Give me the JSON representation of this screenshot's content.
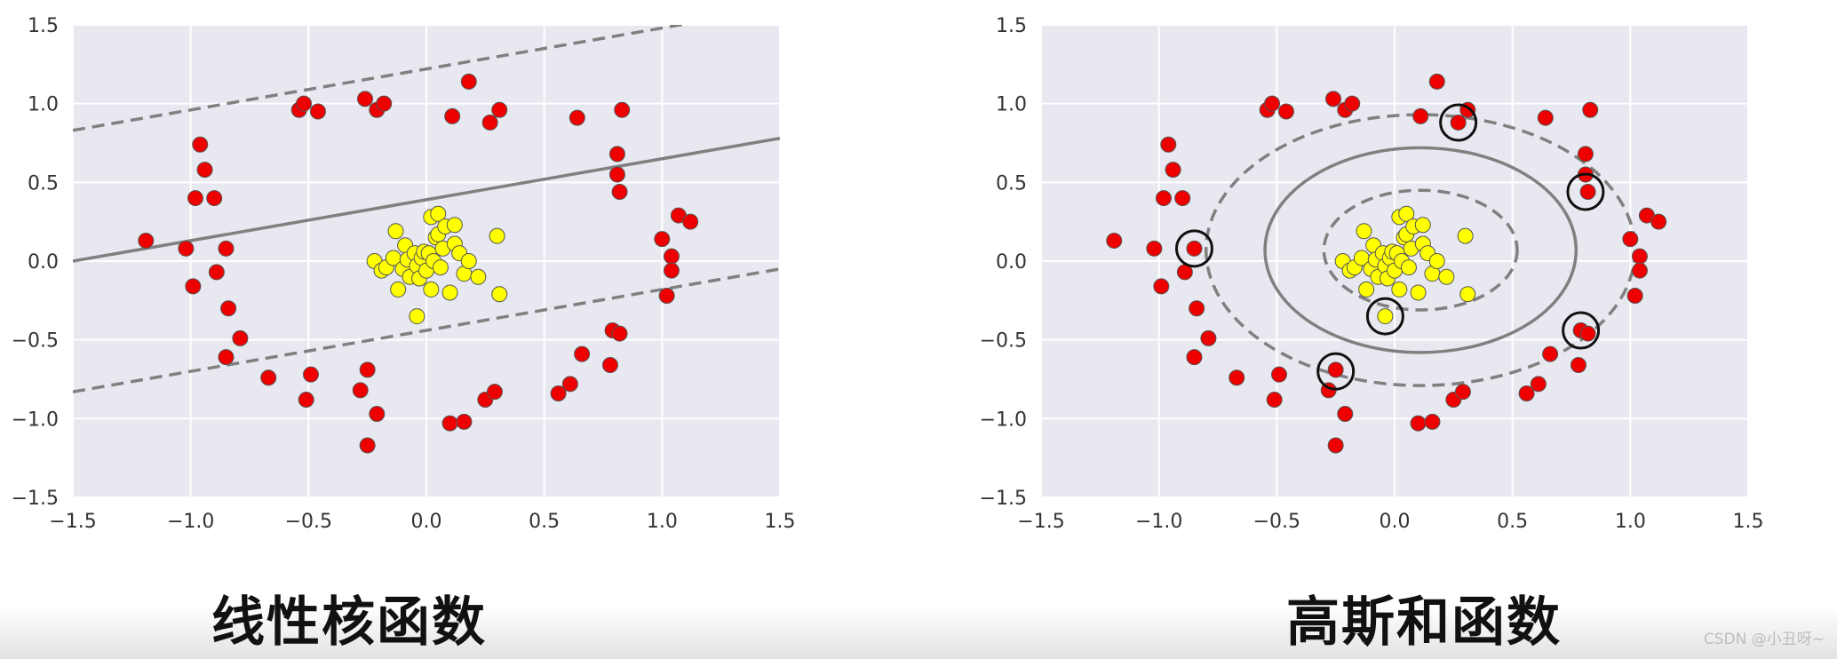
{
  "captions": {
    "left": "线性核函数",
    "right": "高斯和函数"
  },
  "watermark": "CSDN @小丑呀~",
  "colors": {
    "panel_bg": "#e8e8f0",
    "grid": "#ffffff",
    "red_points": "#ee0000",
    "yellow_points": "#ffff00",
    "boundary": "#808080",
    "support_circle": "#111111"
  },
  "chart_data": [
    {
      "type": "scatter",
      "title": "",
      "xlabel": "",
      "ylabel": "",
      "xlim": [
        -1.5,
        1.5
      ],
      "ylim": [
        -1.5,
        1.5
      ],
      "xticks": [
        "−1.5",
        "−1.0",
        "−0.5",
        "0.0",
        "0.5",
        "1.0",
        "1.5"
      ],
      "yticks": [
        "−1.5",
        "−1.0",
        "−0.5",
        "0.0",
        "0.5",
        "1.0",
        "1.5"
      ],
      "grid": true,
      "kernel": "linear",
      "decision_line": {
        "slope": 0.26,
        "intercept": 0.39,
        "margin_offset": 0.83
      },
      "series": [
        {
          "color": "red",
          "points": [
            [
              -1.19,
              0.13
            ],
            [
              -1.02,
              0.08
            ],
            [
              -0.99,
              -0.16
            ],
            [
              -0.98,
              0.4
            ],
            [
              -0.96,
              0.74
            ],
            [
              -0.94,
              0.58
            ],
            [
              -0.9,
              0.4
            ],
            [
              -0.89,
              -0.07
            ],
            [
              -0.85,
              0.08
            ],
            [
              -0.84,
              -0.3
            ],
            [
              -0.85,
              -0.61
            ],
            [
              -0.79,
              -0.49
            ],
            [
              -0.67,
              -0.74
            ],
            [
              -0.54,
              0.96
            ],
            [
              -0.52,
              1.0
            ],
            [
              -0.51,
              -0.88
            ],
            [
              -0.49,
              -0.72
            ],
            [
              -0.46,
              0.95
            ],
            [
              -0.28,
              -0.82
            ],
            [
              -0.26,
              1.03
            ],
            [
              -0.25,
              -0.69
            ],
            [
              -0.25,
              -1.17
            ],
            [
              -0.21,
              0.96
            ],
            [
              -0.21,
              -0.97
            ],
            [
              -0.18,
              1.0
            ],
            [
              0.1,
              -1.03
            ],
            [
              0.11,
              0.92
            ],
            [
              0.16,
              -1.02
            ],
            [
              0.18,
              1.14
            ],
            [
              0.25,
              -0.88
            ],
            [
              0.27,
              0.88
            ],
            [
              0.29,
              -0.83
            ],
            [
              0.31,
              0.96
            ],
            [
              0.56,
              -0.84
            ],
            [
              0.61,
              -0.78
            ],
            [
              0.64,
              0.91
            ],
            [
              0.66,
              -0.59
            ],
            [
              0.78,
              -0.66
            ],
            [
              0.79,
              -0.44
            ],
            [
              0.81,
              0.68
            ],
            [
              0.81,
              0.55
            ],
            [
              0.82,
              0.44
            ],
            [
              0.82,
              -0.46
            ],
            [
              0.83,
              0.96
            ],
            [
              1.0,
              0.14
            ],
            [
              1.02,
              -0.22
            ],
            [
              1.04,
              0.03
            ],
            [
              1.04,
              -0.06
            ],
            [
              1.07,
              0.29
            ],
            [
              1.12,
              0.25
            ]
          ]
        },
        {
          "color": "yellow",
          "points": [
            [
              -0.22,
              0.0
            ],
            [
              -0.19,
              -0.06
            ],
            [
              -0.17,
              -0.04
            ],
            [
              -0.14,
              0.02
            ],
            [
              -0.13,
              0.19
            ],
            [
              -0.12,
              -0.18
            ],
            [
              -0.1,
              -0.05
            ],
            [
              -0.09,
              0.1
            ],
            [
              -0.08,
              0.01
            ],
            [
              -0.07,
              -0.1
            ],
            [
              -0.05,
              0.05
            ],
            [
              -0.04,
              -0.03
            ],
            [
              -0.04,
              -0.35
            ],
            [
              -0.03,
              -0.11
            ],
            [
              -0.02,
              0.02
            ],
            [
              -0.01,
              0.06
            ],
            [
              0.0,
              -0.06
            ],
            [
              0.01,
              0.05
            ],
            [
              0.02,
              0.28
            ],
            [
              0.02,
              -0.18
            ],
            [
              0.03,
              0.0
            ],
            [
              0.04,
              0.15
            ],
            [
              0.05,
              0.3
            ],
            [
              0.05,
              0.17
            ],
            [
              0.06,
              -0.04
            ],
            [
              0.07,
              0.08
            ],
            [
              0.08,
              0.22
            ],
            [
              0.1,
              -0.2
            ],
            [
              0.12,
              0.23
            ],
            [
              0.12,
              0.11
            ],
            [
              0.14,
              0.05
            ],
            [
              0.16,
              -0.08
            ],
            [
              0.18,
              0.0
            ],
            [
              0.22,
              -0.1
            ],
            [
              0.3,
              0.16
            ],
            [
              0.31,
              -0.21
            ]
          ]
        }
      ]
    },
    {
      "type": "scatter",
      "title": "",
      "xlabel": "",
      "ylabel": "",
      "xlim": [
        -1.5,
        1.5
      ],
      "ylim": [
        -1.5,
        1.5
      ],
      "xticks": [
        "−1.5",
        "−1.0",
        "−0.5",
        "0.0",
        "0.5",
        "1.0",
        "1.5"
      ],
      "yticks": [
        "−1.5",
        "−1.0",
        "−0.5",
        "0.0",
        "0.5",
        "1.0",
        "1.5"
      ],
      "grid": true,
      "kernel": "rbf",
      "decision_ellipses": [
        {
          "role": "boundary",
          "cx": 0.11,
          "cy": 0.07,
          "rx": 0.66,
          "ry": 0.65,
          "style": "solid"
        },
        {
          "role": "inner-margin",
          "cx": 0.11,
          "cy": 0.07,
          "rx": 0.41,
          "ry": 0.38,
          "style": "dashed"
        },
        {
          "role": "outer-margin",
          "cx": 0.11,
          "cy": 0.07,
          "rx": 0.91,
          "ry": 0.86,
          "style": "dashed"
        }
      ],
      "support_vectors": [
        [
          -0.85,
          0.08
        ],
        [
          0.27,
          0.88
        ],
        [
          0.81,
          0.44
        ],
        [
          0.79,
          -0.44
        ],
        [
          -0.25,
          -0.7
        ],
        [
          -0.04,
          -0.35
        ]
      ],
      "series": [
        {
          "color": "red",
          "points": [
            [
              -1.19,
              0.13
            ],
            [
              -1.02,
              0.08
            ],
            [
              -0.99,
              -0.16
            ],
            [
              -0.98,
              0.4
            ],
            [
              -0.96,
              0.74
            ],
            [
              -0.94,
              0.58
            ],
            [
              -0.9,
              0.4
            ],
            [
              -0.89,
              -0.07
            ],
            [
              -0.85,
              0.08
            ],
            [
              -0.84,
              -0.3
            ],
            [
              -0.85,
              -0.61
            ],
            [
              -0.79,
              -0.49
            ],
            [
              -0.67,
              -0.74
            ],
            [
              -0.54,
              0.96
            ],
            [
              -0.52,
              1.0
            ],
            [
              -0.51,
              -0.88
            ],
            [
              -0.49,
              -0.72
            ],
            [
              -0.46,
              0.95
            ],
            [
              -0.28,
              -0.82
            ],
            [
              -0.26,
              1.03
            ],
            [
              -0.25,
              -0.69
            ],
            [
              -0.25,
              -1.17
            ],
            [
              -0.21,
              0.96
            ],
            [
              -0.21,
              -0.97
            ],
            [
              -0.18,
              1.0
            ],
            [
              0.1,
              -1.03
            ],
            [
              0.11,
              0.92
            ],
            [
              0.16,
              -1.02
            ],
            [
              0.18,
              1.14
            ],
            [
              0.25,
              -0.88
            ],
            [
              0.27,
              0.88
            ],
            [
              0.29,
              -0.83
            ],
            [
              0.31,
              0.96
            ],
            [
              0.56,
              -0.84
            ],
            [
              0.61,
              -0.78
            ],
            [
              0.64,
              0.91
            ],
            [
              0.66,
              -0.59
            ],
            [
              0.78,
              -0.66
            ],
            [
              0.79,
              -0.44
            ],
            [
              0.81,
              0.68
            ],
            [
              0.81,
              0.55
            ],
            [
              0.82,
              0.44
            ],
            [
              0.82,
              -0.46
            ],
            [
              0.83,
              0.96
            ],
            [
              1.0,
              0.14
            ],
            [
              1.02,
              -0.22
            ],
            [
              1.04,
              0.03
            ],
            [
              1.04,
              -0.06
            ],
            [
              1.07,
              0.29
            ],
            [
              1.12,
              0.25
            ]
          ]
        },
        {
          "color": "yellow",
          "points": [
            [
              -0.22,
              0.0
            ],
            [
              -0.19,
              -0.06
            ],
            [
              -0.17,
              -0.04
            ],
            [
              -0.14,
              0.02
            ],
            [
              -0.13,
              0.19
            ],
            [
              -0.12,
              -0.18
            ],
            [
              -0.1,
              -0.05
            ],
            [
              -0.09,
              0.1
            ],
            [
              -0.08,
              0.01
            ],
            [
              -0.07,
              -0.1
            ],
            [
              -0.05,
              0.05
            ],
            [
              -0.04,
              -0.03
            ],
            [
              -0.04,
              -0.35
            ],
            [
              -0.03,
              -0.11
            ],
            [
              -0.02,
              0.02
            ],
            [
              -0.01,
              0.06
            ],
            [
              0.0,
              -0.06
            ],
            [
              0.01,
              0.05
            ],
            [
              0.02,
              0.28
            ],
            [
              0.02,
              -0.18
            ],
            [
              0.03,
              0.0
            ],
            [
              0.04,
              0.15
            ],
            [
              0.05,
              0.3
            ],
            [
              0.05,
              0.17
            ],
            [
              0.06,
              -0.04
            ],
            [
              0.07,
              0.08
            ],
            [
              0.08,
              0.22
            ],
            [
              0.1,
              -0.2
            ],
            [
              0.12,
              0.23
            ],
            [
              0.12,
              0.11
            ],
            [
              0.14,
              0.05
            ],
            [
              0.16,
              -0.08
            ],
            [
              0.18,
              0.0
            ],
            [
              0.22,
              -0.1
            ],
            [
              0.3,
              0.16
            ],
            [
              0.31,
              -0.21
            ]
          ]
        }
      ]
    }
  ]
}
